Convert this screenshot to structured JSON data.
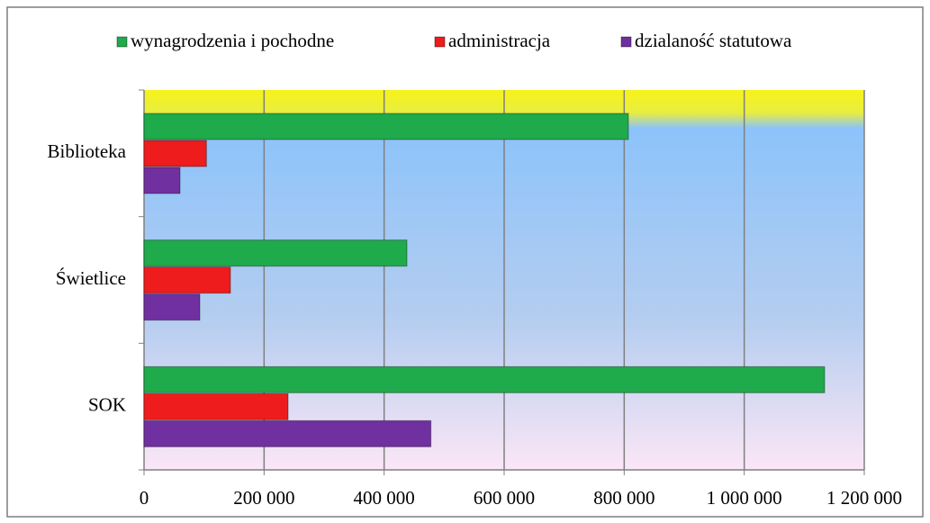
{
  "chart_data": {
    "type": "hbar",
    "categories": [
      "Biblioteka",
      "Świetlice",
      "SOK"
    ],
    "series": [
      {
        "name": "wynagrodzenia i pochodne",
        "color": "#1faa4c",
        "values": [
          807000,
          438000,
          1134000
        ]
      },
      {
        "name": "administracja",
        "color": "#ee1c1c",
        "values": [
          104000,
          144000,
          240000
        ]
      },
      {
        "name": "dzialaność statutowa",
        "color": "#7030a0",
        "values": [
          60000,
          93000,
          478000
        ]
      }
    ],
    "xlim": [
      0,
      1200000
    ],
    "xticks": [
      0,
      {
        "value": 200000,
        "label": "200 000"
      },
      {
        "value": 400000,
        "label": "400 000"
      },
      {
        "value": 600000,
        "label": "600 000"
      },
      {
        "value": 800000,
        "label": "800 000"
      },
      {
        "value": 1000000,
        "label": "1 000 000"
      },
      {
        "value": 1200000,
        "label": "1 200 000"
      }
    ],
    "grid": true
  }
}
